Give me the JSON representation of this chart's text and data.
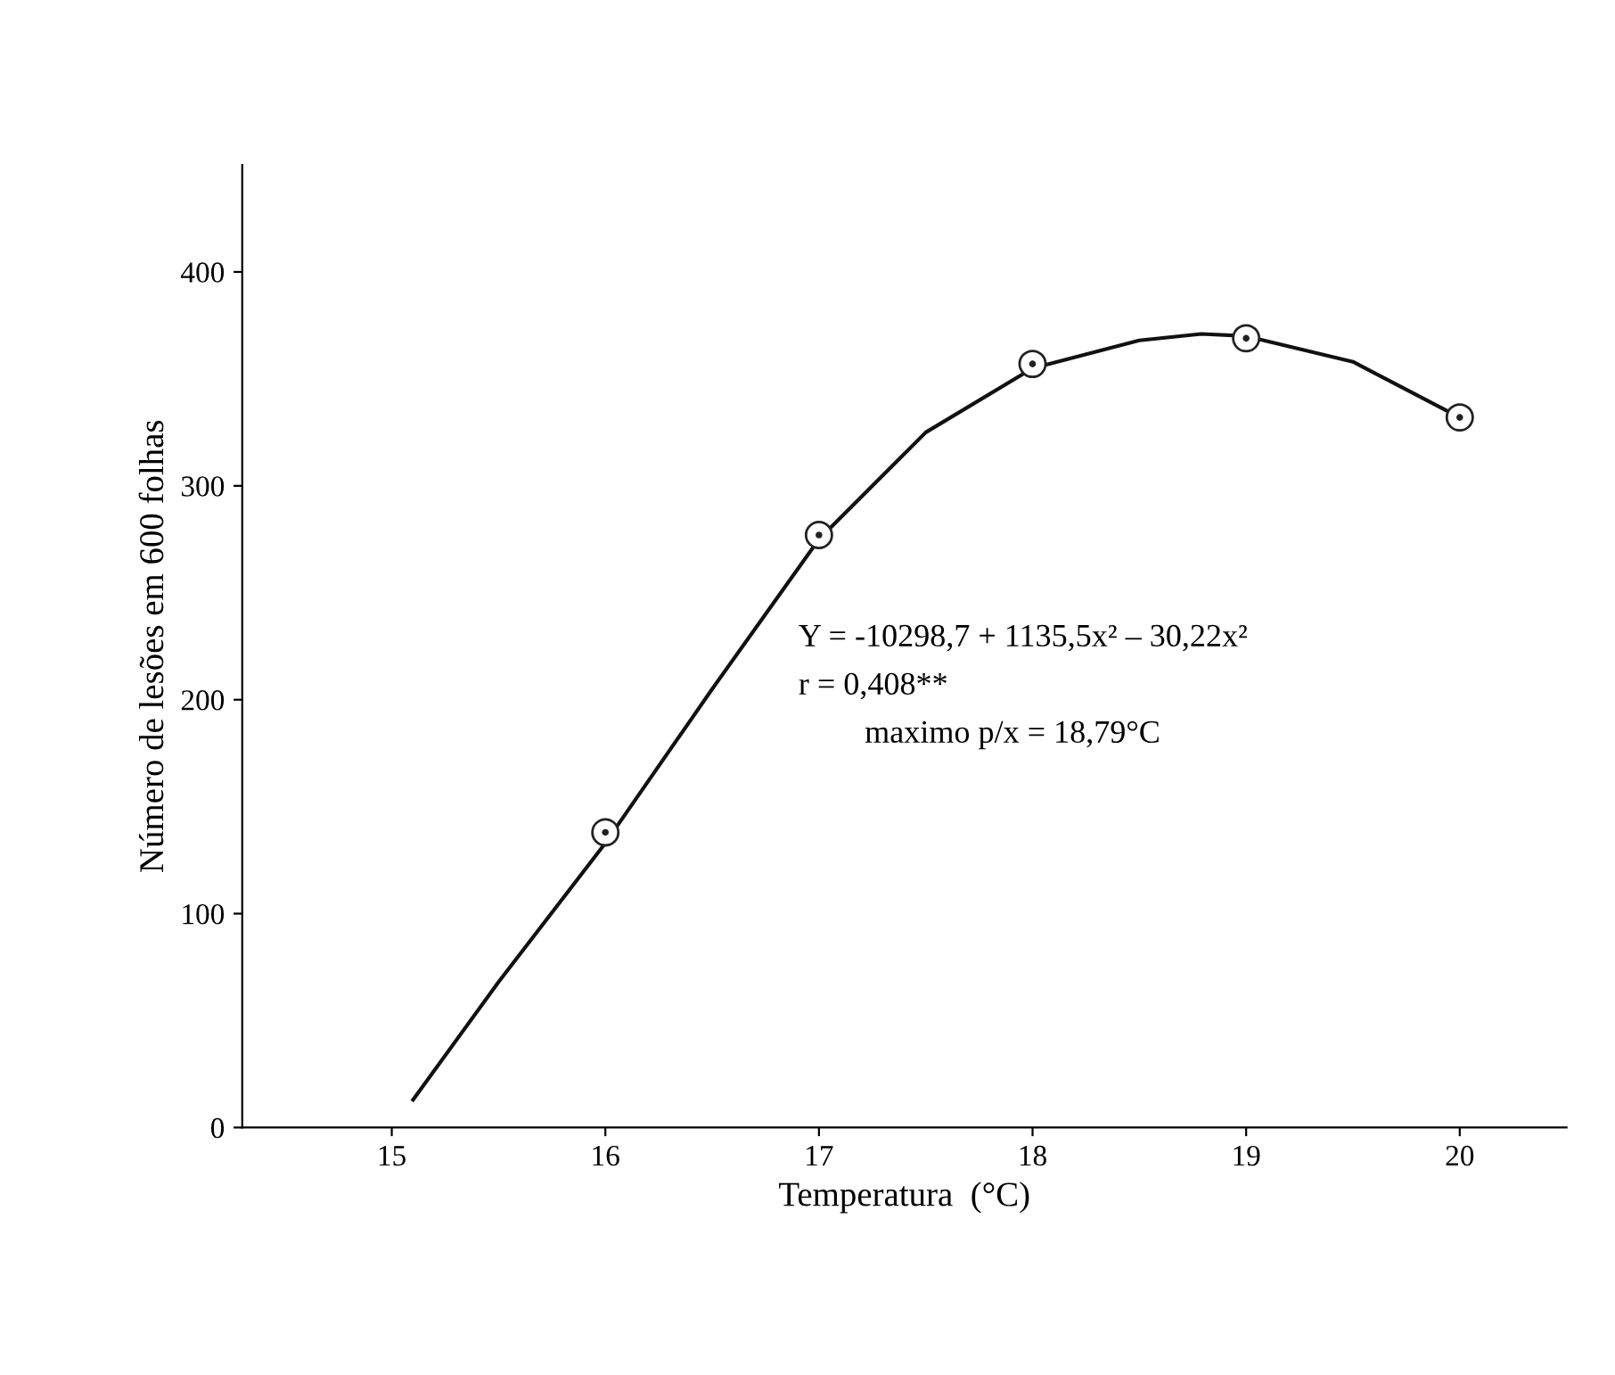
{
  "chart_data": {
    "type": "scatter",
    "xlabel": "Temperatura  (°C)",
    "ylabel": "Número de lesões em 600 folhas",
    "annotations": [
      "Y = -10298,7 + 1135,5x² – 30,22x²",
      "r = 0,408**",
      "maximo p/x = 18,79°C"
    ],
    "series": [
      {
        "color": "#222222",
        "marker": "circle",
        "x": [
          16,
          17,
          18,
          19,
          20
        ],
        "values": [
          138,
          277,
          357,
          369,
          332
        ]
      },
      {
        "type": "line",
        "color": "#111111",
        "marker": "none",
        "line_style": "solid",
        "x": [
          15.1,
          15.5,
          16,
          16.5,
          17,
          17.5,
          18,
          18.5,
          18.79,
          19,
          19.5,
          20
        ],
        "values": [
          13,
          68,
          133,
          205,
          275,
          325,
          355,
          368,
          371,
          370,
          358,
          332
        ]
      }
    ],
    "xlim": [
      14.3,
      20.5
    ],
    "ylim": [
      0,
      450
    ],
    "xticks": [
      15,
      16,
      17,
      18,
      19,
      20
    ],
    "yticks": [
      0,
      100,
      200,
      300,
      400
    ],
    "grid": false,
    "legend": false
  }
}
